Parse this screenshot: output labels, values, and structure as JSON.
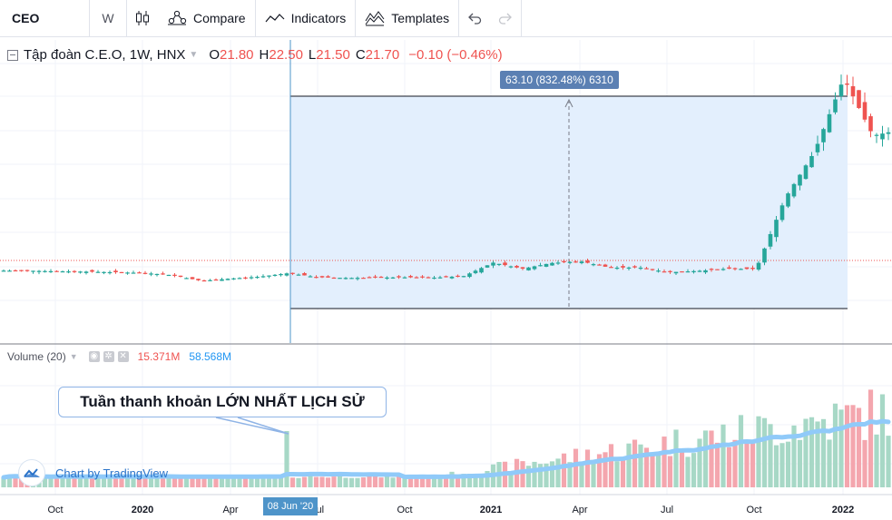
{
  "toolbar": {
    "symbol": "CEO",
    "interval": "W",
    "compare_label": "Compare",
    "indicators_label": "Indicators",
    "templates_label": "Templates",
    "icons": [
      "candles-icon",
      "compare-icon",
      "indicators-icon",
      "templates-icon",
      "undo-icon",
      "redo-icon"
    ]
  },
  "legend": {
    "title": "Tập đoàn C.E.O, 1W, HNX",
    "o_label": "O",
    "o_value": "21.80",
    "h_label": "H",
    "h_value": "22.50",
    "l_label": "L",
    "l_value": "21.50",
    "c_label": "C",
    "c_value": "21.70",
    "change": "−0.10 (−0.46%)"
  },
  "measure_label": "63.10 (832.48%) 6310",
  "volume_legend": {
    "title": "Volume (20)",
    "vol_value": "15.371M",
    "ma_value": "58.568M"
  },
  "annotation": "Tuần thanh khoản LỚN NHẤT LỊCH SỬ",
  "watermark": "Chart by TradingView",
  "crosshair_date": "08 Jun '20",
  "colors": {
    "up": "#26a69a",
    "down": "#ef5350",
    "vol_up": "#a7d8c6",
    "vol_down": "#f4a6ae",
    "ma": "#90caf9",
    "range_fill": "#e3effd",
    "accent": "#2196f3"
  },
  "chart_data": {
    "type": "candlestick",
    "x_tick_labels": [
      "Oct",
      "2020",
      "Apr",
      "Jul",
      "Oct",
      "2021",
      "Apr",
      "Jul",
      "Oct",
      "2022"
    ],
    "price_range": [
      -15,
      80
    ],
    "price_series": [
      {
        "t": "2019-09",
        "close": 7.7
      },
      {
        "t": "2019-10",
        "close": 7.5
      },
      {
        "t": "2019-11",
        "close": 7.4
      },
      {
        "t": "2019-12",
        "close": 7.2
      },
      {
        "t": "2020-01",
        "close": 7.0
      },
      {
        "t": "2020-02",
        "close": 6.3
      },
      {
        "t": "2020-03",
        "close": 4.5
      },
      {
        "t": "2020-04",
        "close": 5.2
      },
      {
        "t": "2020-05",
        "close": 5.8
      },
      {
        "t": "2020-06",
        "close": 6.9
      },
      {
        "t": "2020-07",
        "close": 5.6
      },
      {
        "t": "2020-08",
        "close": 5.4
      },
      {
        "t": "2020-09",
        "close": 5.5
      },
      {
        "t": "2020-10",
        "close": 5.6
      },
      {
        "t": "2020-11",
        "close": 5.5
      },
      {
        "t": "2020-12",
        "close": 6.0
      },
      {
        "t": "2021-01",
        "close": 10.2
      },
      {
        "t": "2021-02",
        "close": 8.3
      },
      {
        "t": "2021-03",
        "close": 10.1
      },
      {
        "t": "2021-04",
        "close": 10.6
      },
      {
        "t": "2021-05",
        "close": 8.6
      },
      {
        "t": "2021-06",
        "close": 8.7
      },
      {
        "t": "2021-07",
        "close": 7.2
      },
      {
        "t": "2021-08",
        "close": 7.6
      },
      {
        "t": "2021-09",
        "close": 8.3
      },
      {
        "t": "2021-10",
        "close": 8.2
      },
      {
        "t": "2021-11",
        "close": 30.5
      },
      {
        "t": "2021-12",
        "close": 45.0
      },
      {
        "t": "2022-01",
        "close": 68.0
      },
      {
        "t": "2022-02",
        "close": 50.0
      },
      {
        "t": "2022-03",
        "close": 52.0
      }
    ],
    "measure_range": {
      "from_date": "2020-06-08",
      "from_price": 7.58,
      "to_price": 70.68,
      "change": 63.1,
      "change_pct": 832.48
    },
    "last_ohlc": {
      "open": 21.8,
      "high": 22.5,
      "low": 21.5,
      "close": 21.7
    }
  }
}
